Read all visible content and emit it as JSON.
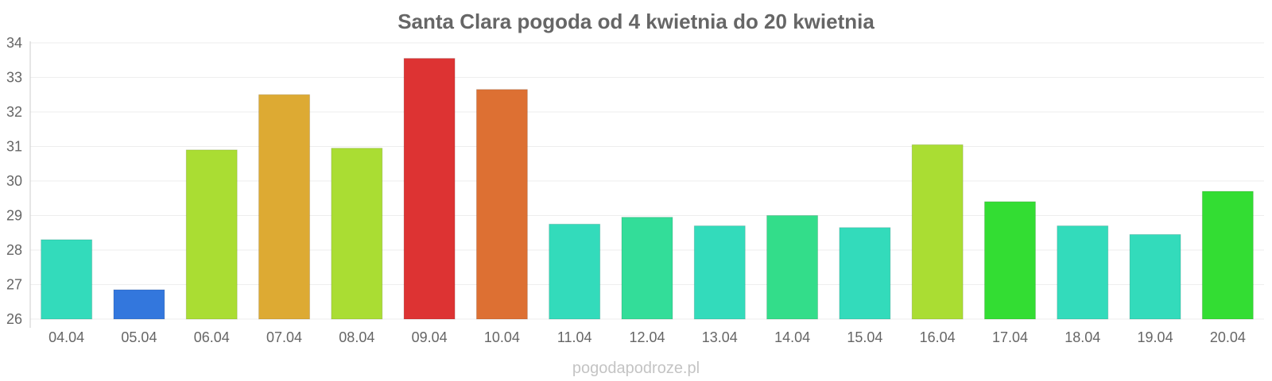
{
  "chart_data": {
    "type": "bar",
    "title": "Santa Clara pogoda od 4 kwietnia do 20 kwietnia",
    "xlabel": "",
    "ylabel": "",
    "ylim": [
      26,
      34
    ],
    "yticks": [
      "26",
      "27",
      "28",
      "29",
      "30",
      "31",
      "32",
      "33",
      "34"
    ],
    "grid": true,
    "categories": [
      "04.04",
      "05.04",
      "06.04",
      "07.04",
      "08.04",
      "09.04",
      "10.04",
      "11.04",
      "12.04",
      "13.04",
      "14.04",
      "15.04",
      "16.04",
      "17.04",
      "18.04",
      "19.04",
      "20.04"
    ],
    "values": [
      28.3,
      26.85,
      30.9,
      32.5,
      30.95,
      33.55,
      32.65,
      28.75,
      28.95,
      28.7,
      29.0,
      28.65,
      31.05,
      29.4,
      28.7,
      28.45,
      29.7
    ],
    "colors": [
      "#33dbbb",
      "#3377dd",
      "#aadd33",
      "#ddaa33",
      "#aadd33",
      "#dd3333",
      "#dd7033",
      "#33dbbb",
      "#33dd99",
      "#33dbbb",
      "#33dd8a",
      "#33dbbb",
      "#aadd33",
      "#33dd33",
      "#33dbbb",
      "#33dbbb",
      "#33dd33"
    ]
  },
  "footer": {
    "watermark": "pogodapodroze.pl"
  }
}
